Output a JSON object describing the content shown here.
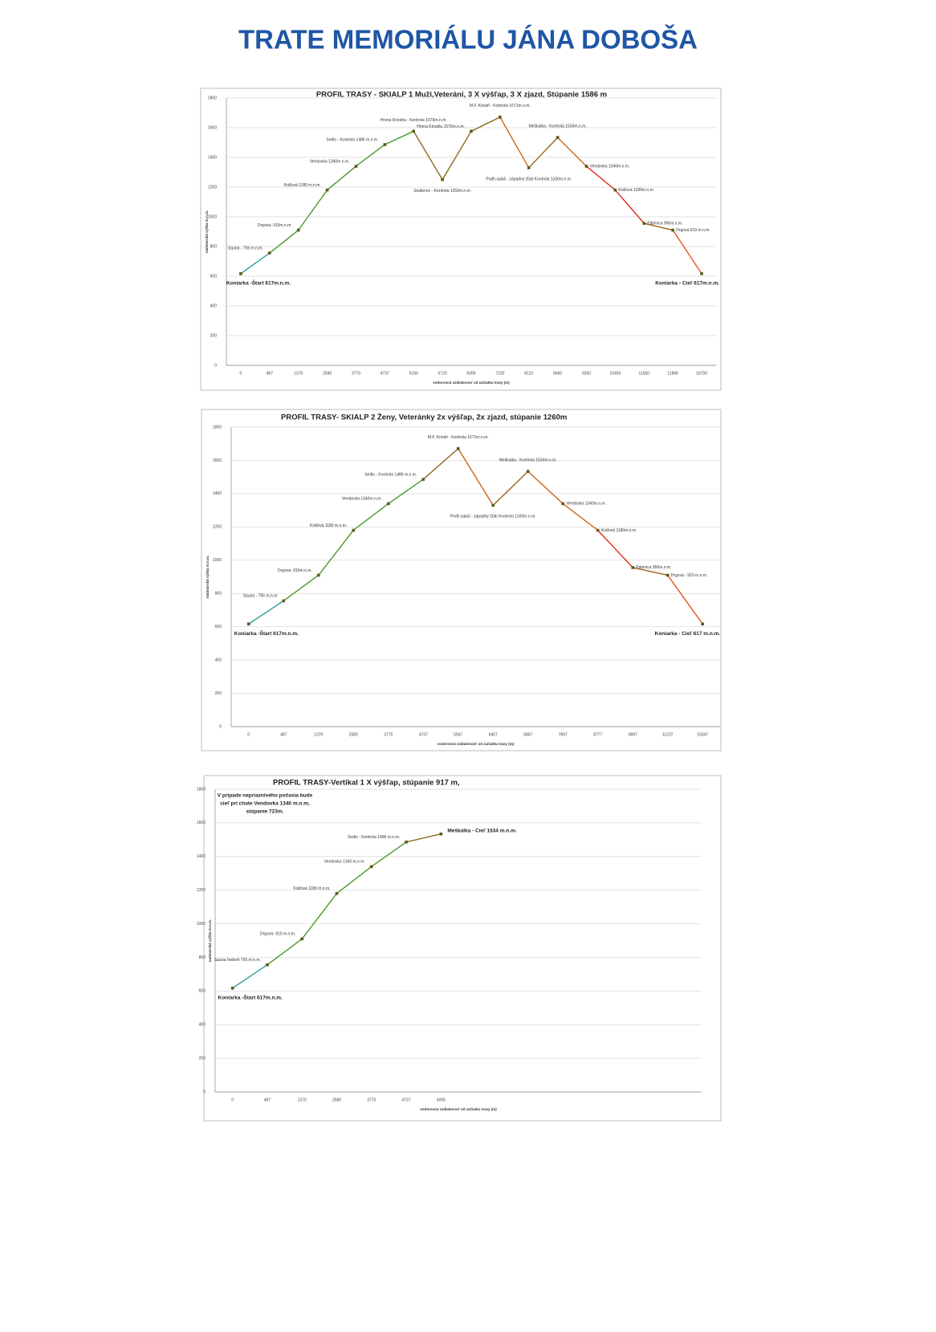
{
  "title": "TRATE MEMORIÁLU JÁNA DOBOŠA",
  "chart_data": [
    {
      "type": "line",
      "title": "PROFIL TRASY - SKIALP 1 Muži,Veteráni, 3 X výšľap, 3 X zjazd, Stúpanie 1586 m",
      "x_label": "vodorovná vzdialenosť od začiatku trasy (m)",
      "y_label": "nadmorská výška m.n.m.",
      "categories": [
        0,
        487,
        1370,
        2580,
        3770,
        4737,
        5160,
        5720,
        6390,
        7220,
        8110,
        8460,
        9350,
        10450,
        11550,
        11890,
        16700
      ],
      "values": [
        617,
        756,
        910,
        1180,
        1340,
        1486,
        1576,
        1250,
        1576,
        1671,
        1330,
        1534,
        1340,
        1180,
        956,
        910,
        617
      ],
      "point_labels": [
        "Koniarka -Štart 617m.n.m.",
        "Sauna - 756 m.n.m.",
        "Drgová- 910m.n.m.",
        "Kráľová 1180 m.n.m.",
        "Vendovka 1340m n.m.",
        "Sedlo - Kontrola 1486 m.n.m.",
        "Hrona Kriváňa - Kontrola 1576m.n.m.",
        "Studenec - Kontrola 1250m.n.m.",
        "Hrona Kriváňa 1576m.n.m.",
        "M.F. Kriváň - Kontrola 1671m.n.m.",
        "Podh.salaš - západný žľab Kontrola 1330m.n.m.",
        "Meškalka - Kontrola 1534m.n.m.",
        "Vendovka 1340m.n.m.",
        "Kráľová 1180m.n.m.",
        "Pálenica 956m.n.m.",
        "Drgová 910 m.n.m.",
        "Koniarka - Cieľ 617m.n.m."
      ],
      "segment_colors": [
        "#2a9d9a",
        "#4a9a2c",
        "#4a9a2c",
        "#4a9a2c",
        "#4a9a2c",
        "#4a9a2c",
        "#8a6a1c",
        "#8a6a1c",
        "#8a6a1c",
        "#d0661a",
        "#a0601c",
        "#d0661a",
        "#e02a1a",
        "#e02a1a",
        "#a0601c",
        "#e8502a"
      ],
      "marker_color": "#5a5a1a",
      "ylim": [
        0,
        1800
      ],
      "yticks": [
        0,
        200,
        400,
        600,
        800,
        1000,
        1200,
        1400,
        1600,
        1800
      ],
      "grid": true
    },
    {
      "type": "line",
      "title": "PROFIL TRASY-  SKIALP 2   Ženy, Veteránky 2x výšľap, 2x zjazd, stúpanie 1260m",
      "x_label": "vodorovná vzdialenosť od začiatku trasy (m)",
      "y_label": "nadmorská výška m.n.m.",
      "categories": [
        0,
        487,
        1370,
        2580,
        3770,
        4737,
        5567,
        6457,
        6807,
        7897,
        8777,
        9897,
        11237,
        15047
      ],
      "values": [
        617,
        756,
        910,
        1180,
        1340,
        1486,
        1671,
        1330,
        1534,
        1340,
        1180,
        956,
        910,
        617
      ],
      "point_labels": [
        "Koniarka -Štart 617m.n.m.",
        "Sauna - 756 m.n.m",
        "Drgová- 910m.n.m.",
        "Kráľová 1180 m.n.m.",
        "Vendovka 1340m.n.m.",
        "Sedlo - Kontrola 1486 m.n.m.",
        "M.F. Kriváň - Kontrola 1671m.n.m.",
        "Podh.salaš - západný žľab Kontrola 1330m.n.m.",
        "Meškalka - Kontrola 1534m.n.m.",
        "Vendovka 1340m.n.m.",
        "Kráľová 1180m.n.m.",
        "Pálenica 956m.n.m.",
        "Drgová - 910 m.n.m.",
        "Koniarka - Cieľ 617 m.n.m."
      ],
      "segment_colors": [
        "#2a9d9a",
        "#4a9a2c",
        "#4a9a2c",
        "#4a9a2c",
        "#4a9a2c",
        "#8a6a1c",
        "#c8661a",
        "#a0601c",
        "#d0661a",
        "#d0661a",
        "#e02a1a",
        "#a0601c",
        "#e8502a"
      ],
      "marker_color": "#5a5a1a",
      "ylim": [
        0,
        1800
      ],
      "yticks": [
        0,
        200,
        400,
        600,
        800,
        1000,
        1200,
        1400,
        1600,
        1800
      ],
      "grid": true
    },
    {
      "type": "line",
      "title": "PROFIL TRASY-Vertikal  1 X výšľap, stúpanie 917 m,",
      "annotation": [
        "V prípade nepriaznivého počasia bude",
        "cieľ pri chate Vendovka 1340 m.n.m,",
        "stúpanie 723m."
      ],
      "x_label": "vodorovná vzdialenosť od začiatku trasy (m)",
      "y_label": "nadmorská výška m.n.m.",
      "categories": [
        0,
        487,
        1370,
        2580,
        3770,
        4737,
        4995,
        null,
        null,
        null,
        null,
        null,
        null,
        null
      ],
      "values": [
        617,
        756,
        910,
        1180,
        1340,
        1486,
        1534,
        null,
        null,
        null,
        null,
        null,
        null,
        null
      ],
      "point_labels": [
        "Koniarka -Štart 617m.n.m.",
        "Sauna hrebeň 756 m.n.m.",
        "Drgová- 910 m.n.m.",
        "Kráľová 1180 m.n.m.",
        "Vendovka 1340 m.n.m.",
        "Sedlo - Kontrola 1486 m.n.m.",
        "Meškalka - Cieľ 1534 m.n.m.",
        null,
        null,
        null,
        null,
        null,
        null,
        null
      ],
      "segment_colors": [
        "#2a9d9a",
        "#4a9a2c",
        "#4a9a2c",
        "#4a9a2c",
        "#4a9a2c",
        "#8a6a1c",
        null,
        null,
        null,
        null,
        null,
        null,
        null
      ],
      "marker_color": "#5a5a1a",
      "ylim": [
        0,
        1800
      ],
      "yticks": [
        0,
        200,
        400,
        600,
        800,
        1000,
        1200,
        1400,
        1600,
        1800
      ],
      "grid": true
    }
  ]
}
